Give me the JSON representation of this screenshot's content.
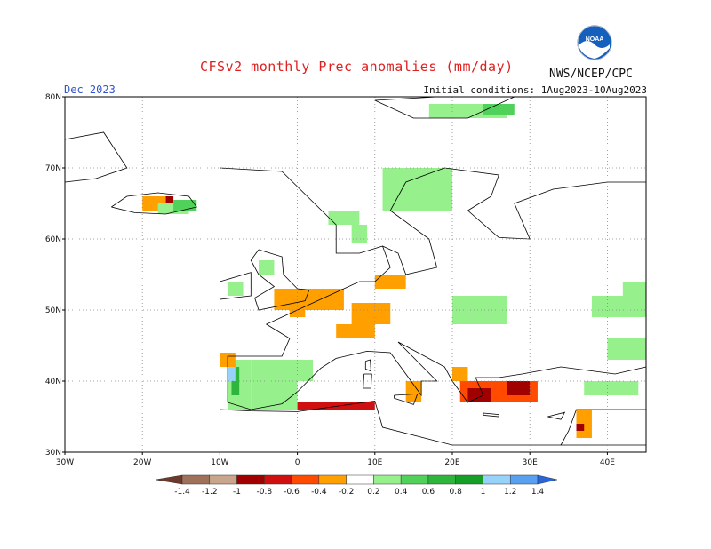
{
  "header": {
    "title": "CFSv2 monthly Prec anomalies (mm/day)",
    "month": "Dec 2023",
    "initial_conditions": "Initial conditions: 1Aug2023-10Aug2023",
    "agency": "NWS/NCEP/CPC",
    "logo_text": "NOAA"
  },
  "chart_data": {
    "type": "heatmap",
    "title": "CFSv2 monthly Prec anomalies (mm/day)",
    "subtitle": "Dec 2023",
    "xlim": [
      -30,
      45
    ],
    "ylim": [
      30,
      80
    ],
    "x_ticks": [
      {
        "value": -30,
        "label": "30W"
      },
      {
        "value": -20,
        "label": "20W"
      },
      {
        "value": -10,
        "label": "10W"
      },
      {
        "value": 0,
        "label": "0"
      },
      {
        "value": 10,
        "label": "10E"
      },
      {
        "value": 20,
        "label": "20E"
      },
      {
        "value": 30,
        "label": "30E"
      },
      {
        "value": 40,
        "label": "40E"
      }
    ],
    "y_ticks": [
      {
        "value": 30,
        "label": "30N"
      },
      {
        "value": 40,
        "label": "40N"
      },
      {
        "value": 50,
        "label": "50N"
      },
      {
        "value": 60,
        "label": "60N"
      },
      {
        "value": 70,
        "label": "70N"
      },
      {
        "value": 80,
        "label": "80N"
      }
    ],
    "grid": true,
    "colorbar": {
      "levels": [
        "-1.4",
        "-1.2",
        "-1",
        "-0.8",
        "-0.6",
        "-0.4",
        "-0.2",
        "0.2",
        "0.4",
        "0.6",
        "0.8",
        "1",
        "1.2",
        "1.4"
      ],
      "colors": [
        "#6b3a2a",
        "#a0715a",
        "#c8a58c",
        "#a00000",
        "#d01010",
        "#ff4a00",
        "#ffa000",
        "#ffffff",
        "#96f08c",
        "#50d25a",
        "#2fb43c",
        "#14a028",
        "#96d2fa",
        "#5aa0f0",
        "#2864dc"
      ]
    },
    "anomaly_regions": [
      {
        "lon": [
          -17,
          -16
        ],
        "lat": [
          64.5,
          66
        ],
        "value": -0.8
      },
      {
        "lon": [
          -20,
          -17
        ],
        "lat": [
          64,
          66
        ],
        "value": -0.3
      },
      {
        "lon": [
          -18,
          -14
        ],
        "lat": [
          63.5,
          65
        ],
        "value": 0.3
      },
      {
        "lon": [
          -16,
          -13
        ],
        "lat": [
          64,
          65.5
        ],
        "value": 0.6
      },
      {
        "lon": [
          11,
          20
        ],
        "lat": [
          64,
          70
        ],
        "value": 0.3
      },
      {
        "lon": [
          7,
          9
        ],
        "lat": [
          59.5,
          62
        ],
        "value": 0.3
      },
      {
        "lon": [
          4,
          8
        ],
        "lat": [
          62,
          64
        ],
        "value": 0.3
      },
      {
        "lon": [
          17,
          27
        ],
        "lat": [
          77,
          79
        ],
        "value": 0.3
      },
      {
        "lon": [
          24,
          28
        ],
        "lat": [
          77.5,
          79
        ],
        "value": 0.6
      },
      {
        "lon": [
          -5,
          -3
        ],
        "lat": [
          55,
          57
        ],
        "value": 0.3
      },
      {
        "lon": [
          -9,
          -7
        ],
        "lat": [
          52,
          54
        ],
        "value": 0.3
      },
      {
        "lon": [
          -3,
          6
        ],
        "lat": [
          50,
          53
        ],
        "value": -0.3
      },
      {
        "lon": [
          -1,
          1
        ],
        "lat": [
          49,
          50
        ],
        "value": -0.3
      },
      {
        "lon": [
          10,
          14
        ],
        "lat": [
          53,
          55
        ],
        "value": -0.3
      },
      {
        "lon": [
          7,
          12
        ],
        "lat": [
          48,
          51
        ],
        "value": -0.3
      },
      {
        "lon": [
          5,
          10
        ],
        "lat": [
          46,
          48
        ],
        "value": -0.3
      },
      {
        "lon": [
          20,
          27
        ],
        "lat": [
          48,
          52
        ],
        "value": 0.3
      },
      {
        "lon": [
          38,
          45
        ],
        "lat": [
          49,
          52
        ],
        "value": 0.3
      },
      {
        "lon": [
          42,
          45
        ],
        "lat": [
          52,
          54
        ],
        "value": 0.3
      },
      {
        "lon": [
          40,
          45
        ],
        "lat": [
          43,
          46
        ],
        "value": 0.3
      },
      {
        "lon": [
          -9,
          -6
        ],
        "lat": [
          36,
          43
        ],
        "value": 0.4
      },
      {
        "lon": [
          -8.5,
          -7.5
        ],
        "lat": [
          38,
          42
        ],
        "value": 0.8
      },
      {
        "lon": [
          -9,
          -8
        ],
        "lat": [
          40,
          42
        ],
        "value": 1.1
      },
      {
        "lon": [
          -6,
          2
        ],
        "lat": [
          40,
          43
        ],
        "value": 0.3
      },
      {
        "lon": [
          -6,
          0
        ],
        "lat": [
          36,
          40
        ],
        "value": 0.3
      },
      {
        "lon": [
          -10,
          -8
        ],
        "lat": [
          42,
          44
        ],
        "value": -0.3
      },
      {
        "lon": [
          0,
          10
        ],
        "lat": [
          36,
          37
        ],
        "value": -0.6
      },
      {
        "lon": [
          14,
          16
        ],
        "lat": [
          37,
          40
        ],
        "value": -0.3
      },
      {
        "lon": [
          20,
          22
        ],
        "lat": [
          40,
          42
        ],
        "value": -0.3
      },
      {
        "lon": [
          21,
          26
        ],
        "lat": [
          37,
          40
        ],
        "value": -0.4
      },
      {
        "lon": [
          22,
          25
        ],
        "lat": [
          37,
          39
        ],
        "value": -0.8
      },
      {
        "lon": [
          26,
          31
        ],
        "lat": [
          37,
          40
        ],
        "value": -0.5
      },
      {
        "lon": [
          27,
          30
        ],
        "lat": [
          38,
          40
        ],
        "value": -0.8
      },
      {
        "lon": [
          36,
          38
        ],
        "lat": [
          32,
          36
        ],
        "value": -0.3
      },
      {
        "lon": [
          36,
          37
        ],
        "lat": [
          33,
          34
        ],
        "value": -0.8
      },
      {
        "lon": [
          37,
          44
        ],
        "lat": [
          38,
          40
        ],
        "value": 0.3
      }
    ]
  }
}
